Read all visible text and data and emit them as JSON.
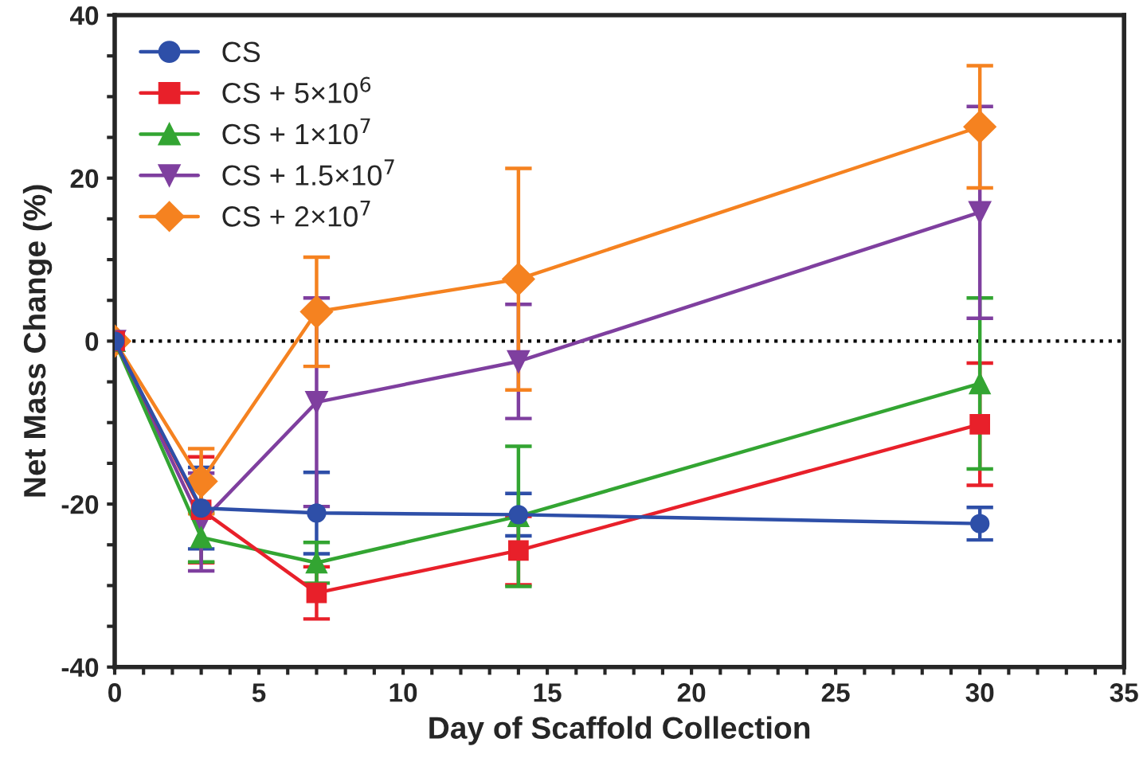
{
  "chart_data": {
    "type": "line",
    "xlabel": "Day of Scaffold Collection",
    "ylabel": "Net Mass Change (%)",
    "x": [
      0,
      3,
      7,
      14,
      30
    ],
    "series": [
      {
        "name": "CS",
        "color": "#2e4fa8",
        "marker": "circle",
        "values": [
          0,
          -20.5,
          -21.1,
          -21.3,
          -22.4
        ],
        "errors": [
          null,
          5,
          5,
          2.6,
          2
        ]
      },
      {
        "name": "CS + 5×10$^{6}$",
        "color": "#e8202a",
        "marker": "square",
        "values": [
          0,
          -20.7,
          -30.9,
          -25.7,
          -10.2
        ],
        "errors": [
          null,
          6.5,
          3.2,
          4.2,
          7.5
        ]
      },
      {
        "name": "CS + 1×10$^{7}$",
        "color": "#33a532",
        "marker": "triangle",
        "values": [
          0,
          -24.1,
          -27.2,
          -21.5,
          -5.2
        ],
        "errors": [
          null,
          3,
          2.5,
          8.6,
          10.5
        ]
      },
      {
        "name": "CS + 1.5×10$^{7}$",
        "color": "#7f3f9f",
        "marker": "triangle_down",
        "values": [
          0,
          -22.2,
          -7.5,
          -2.5,
          15.8
        ],
        "errors": [
          null,
          6,
          12.8,
          7,
          13
        ]
      },
      {
        "name": "CS + 2×10$^{7}$",
        "color": "#f58220",
        "marker": "diamond",
        "values": [
          0,
          -17.2,
          3.6,
          7.6,
          26.3
        ],
        "errors": [
          null,
          4,
          6.7,
          13.6,
          7.5
        ]
      }
    ],
    "xlim": [
      0,
      35
    ],
    "xticks": [
      0,
      {
        "value": 1,
        "label": null
      },
      {
        "value": 2,
        "label": null
      },
      {
        "value": 3,
        "label": null
      },
      {
        "value": 4,
        "label": null
      },
      5,
      {
        "value": 6,
        "label": null
      },
      {
        "value": 7,
        "label": null
      },
      {
        "value": 8,
        "label": null
      },
      {
        "value": 9,
        "label": null
      },
      10,
      {
        "value": 11,
        "label": null
      },
      {
        "value": 12,
        "label": null
      },
      {
        "value": 13,
        "label": null
      },
      {
        "value": 14,
        "label": null
      },
      15,
      {
        "value": 16,
        "label": null
      },
      {
        "value": 17,
        "label": null
      },
      {
        "value": 18,
        "label": null
      },
      {
        "value": 19,
        "label": null
      },
      20,
      {
        "value": 21,
        "label": null
      },
      {
        "value": 22,
        "label": null
      },
      {
        "value": 23,
        "label": null
      },
      {
        "value": 24,
        "label": null
      },
      25,
      {
        "value": 26,
        "label": null
      },
      {
        "value": 27,
        "label": null
      },
      {
        "value": 28,
        "label": null
      },
      {
        "value": 29,
        "label": null
      },
      30,
      {
        "value": 31,
        "label": null
      },
      {
        "value": 32,
        "label": null
      },
      {
        "value": 33,
        "label": null
      },
      {
        "value": 34,
        "label": null
      },
      35
    ],
    "ylim": [
      -40,
      40
    ],
    "yticks": [
      -40,
      {
        "value": -35,
        "label": null
      },
      {
        "value": -30,
        "label": null
      },
      {
        "value": -25,
        "label": null
      },
      -20,
      {
        "value": -15,
        "label": null
      },
      {
        "value": -10,
        "label": null
      },
      {
        "value": -5,
        "label": null
      },
      0,
      {
        "value": 5,
        "label": null
      },
      {
        "value": 10,
        "label": null
      },
      {
        "value": 15,
        "label": null
      },
      20,
      {
        "value": 25,
        "label": null
      },
      {
        "value": 30,
        "label": null
      },
      {
        "value": 35,
        "label": null
      },
      40
    ],
    "ref_lines": [
      {
        "axis": "y",
        "value": 0,
        "color": "#000000",
        "line_style": "dotted"
      }
    ],
    "legend": "top left",
    "grid": false,
    "line_style": "solid"
  }
}
